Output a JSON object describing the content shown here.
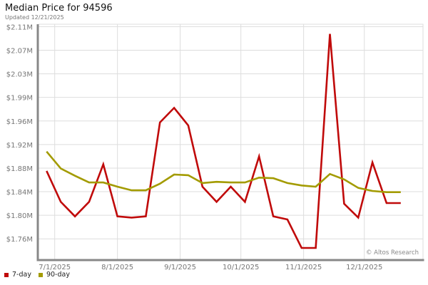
{
  "chart_data": {
    "type": "line",
    "title": "Median Price for 94596",
    "subtitle": "Updated 12/21/2025",
    "watermark": "© Altos Research",
    "x": [
      "2025-06-27",
      "2025-07-04",
      "2025-07-11",
      "2025-07-18",
      "2025-07-25",
      "2025-08-01",
      "2025-08-08",
      "2025-08-15",
      "2025-08-22",
      "2025-08-29",
      "2025-09-05",
      "2025-09-12",
      "2025-09-19",
      "2025-09-26",
      "2025-10-03",
      "2025-10-10",
      "2025-10-17",
      "2025-10-24",
      "2025-10-31",
      "2025-11-07",
      "2025-11-14",
      "2025-11-21",
      "2025-11-28",
      "2025-12-05",
      "2025-12-12",
      "2025-12-19"
    ],
    "xticks": [
      {
        "date": "2025-07-01",
        "label": "7/1/2025"
      },
      {
        "date": "2025-08-01",
        "label": "8/1/2025"
      },
      {
        "date": "2025-09-01",
        "label": "9/1/2025"
      },
      {
        "date": "2025-10-01",
        "label": "10/1/2025"
      },
      {
        "date": "2025-11-01",
        "label": "11/1/2025"
      },
      {
        "date": "2025-12-01",
        "label": "12/1/2025"
      }
    ],
    "xlim": [
      "2025-06-23",
      "2025-12-30"
    ],
    "ytick_labels": [
      "$1.76M",
      "$1.80M",
      "$1.84M",
      "$1.88M",
      "$1.92M",
      "$1.96M",
      "$1.99M",
      "$2.03M",
      "$2.07M",
      "$2.11M"
    ],
    "ytick_range": [
      1.76,
      2.11
    ],
    "ylim": [
      1.725,
      2.114
    ],
    "yunit": "$M",
    "grid": true,
    "legend_position": "bottom-left",
    "series": [
      {
        "name": "7-day",
        "color": "#c00a0a",
        "values": [
          1.872,
          1.821,
          1.797,
          1.821,
          1.883,
          1.797,
          1.795,
          1.797,
          1.952,
          1.976,
          1.947,
          1.846,
          1.821,
          1.846,
          1.821,
          1.896,
          1.797,
          1.792,
          1.745,
          1.745,
          2.098,
          1.818,
          1.795,
          1.886,
          1.819,
          1.819
        ]
      },
      {
        "name": "90-day",
        "color": "#a39b00",
        "values": [
          1.904,
          1.876,
          1.864,
          1.853,
          1.853,
          1.846,
          1.84,
          1.84,
          1.851,
          1.866,
          1.865,
          1.852,
          1.854,
          1.853,
          1.853,
          1.861,
          1.86,
          1.852,
          1.848,
          1.846,
          1.867,
          1.858,
          1.844,
          1.839,
          1.837,
          1.837
        ]
      }
    ]
  }
}
